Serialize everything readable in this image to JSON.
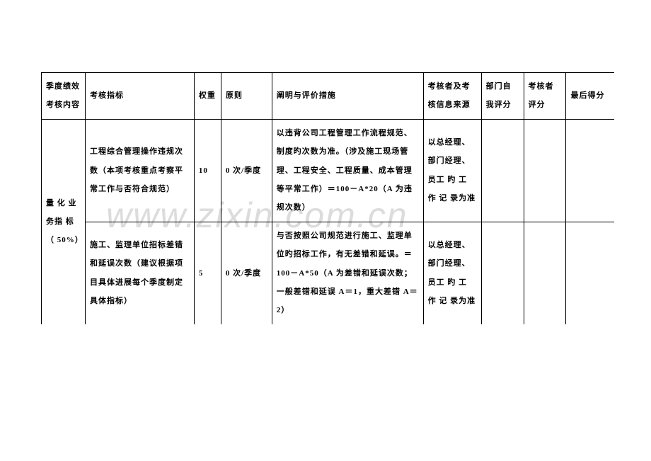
{
  "watermark": "www.zixin.com.cn",
  "table": {
    "header": {
      "col0": "季度绩效考核内容",
      "col1": "考核指标",
      "col2": "权重",
      "col3": "原则",
      "col4": "阐明与评价措施",
      "col5": "考核者及考核信息来源",
      "col6": "部门自我评分",
      "col7": "考核者评分",
      "col8": "最后得分"
    },
    "rows": [
      {
        "category": "量 化 业 务指 标（ 50%）",
        "indicator": "工程综合管理操作违规次数（本项考核重点考察平常工作与否符合规范）",
        "weight": "10",
        "principle": "0 次/季度",
        "desc": "以违背公司工程管理工作流程规范、制度旳次数为准。（涉及施工现场管理、工程安全、工程质量、成本管理等平常工作）＝100－A*20（A 为违规次数）",
        "source": "以总经理、部门经理、员工 旳 工 作 记 录为准",
        "self": "",
        "examiner": "",
        "final": ""
      },
      {
        "indicator": "施工、监理单位招标差错和延误次数（建议根据项目具体进展每个季度制定具体指标）",
        "weight": "5",
        "principle": "0 次/季度",
        "desc": "与否按照公司规范进行施工、监理单位旳招标工作，有无差错和延误。＝100－A*50（A 为差错和延误次数；一般差错和延误 A＝1，重大差错 A＝2）",
        "source": "以总经理、部门经理、员工 旳 工 作 记 录为准",
        "self": "",
        "examiner": "",
        "final": ""
      }
    ]
  }
}
